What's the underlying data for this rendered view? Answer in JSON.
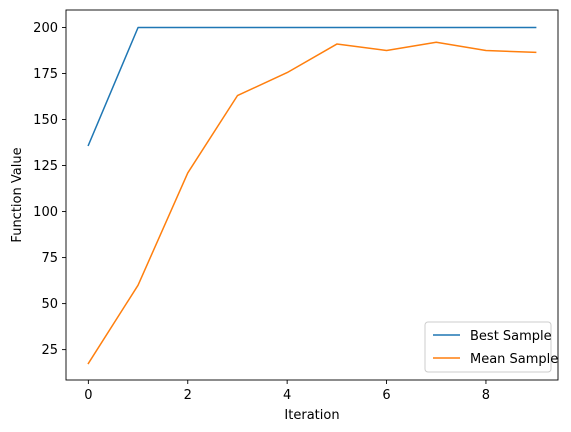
{
  "chart_data": {
    "type": "line",
    "xlabel": "Iteration",
    "ylabel": "Function Value",
    "x": [
      0,
      1,
      2,
      3,
      4,
      5,
      6,
      7,
      8,
      9
    ],
    "xlim": [
      -0.45,
      9.45
    ],
    "ylim": [
      8.5,
      209.5
    ],
    "xticks": [
      0,
      2,
      4,
      6,
      8
    ],
    "yticks": [
      25,
      50,
      75,
      100,
      125,
      150,
      175,
      200
    ],
    "grid": false,
    "legend_position": "lower-right",
    "series": [
      {
        "name": "Best Sample",
        "color": "#1f77b4",
        "values": [
          136,
          200,
          200,
          200,
          200,
          200,
          200,
          200,
          200,
          200
        ]
      },
      {
        "name": "Mean Sample",
        "color": "#ff7f0e",
        "values": [
          17.5,
          60,
          121,
          163,
          175.5,
          191,
          187.5,
          192,
          187.5,
          186.5
        ]
      }
    ]
  }
}
